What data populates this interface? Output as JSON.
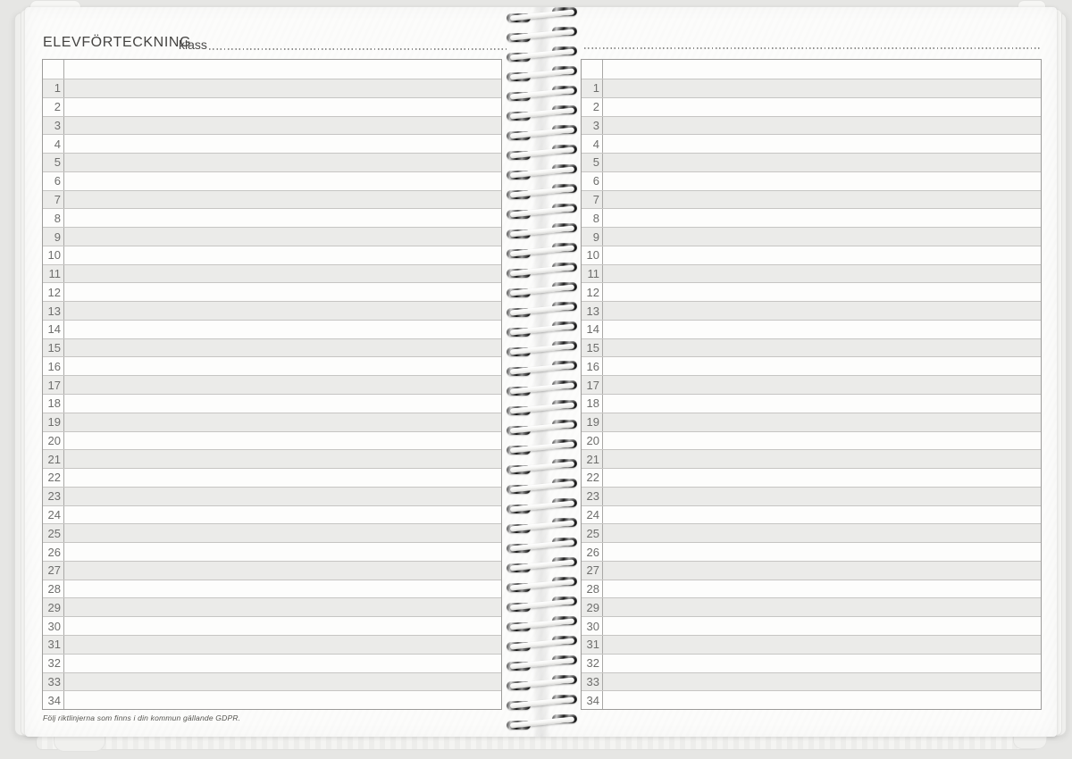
{
  "header": {
    "title": "ELEVFÖRTECKNING",
    "class_label": "klass"
  },
  "roster": {
    "row_count": 34,
    "row_numbers": [
      "1",
      "2",
      "3",
      "4",
      "5",
      "6",
      "7",
      "8",
      "9",
      "10",
      "11",
      "12",
      "13",
      "14",
      "15",
      "16",
      "17",
      "18",
      "19",
      "20",
      "21",
      "22",
      "23",
      "24",
      "25",
      "26",
      "27",
      "28",
      "29",
      "30",
      "31",
      "32",
      "33",
      "34"
    ]
  },
  "footer": {
    "gdpr_note": "Följ riktlinjerna som finns i din kommun gällande GDPR."
  },
  "spiral": {
    "coil_count": 37
  },
  "colors": {
    "page": "#fcfcfb",
    "background": "#e6e6e4",
    "row_shaded": "#ebebe9",
    "row_line": "#c6c5c3",
    "table_border": "#9c9b99",
    "title_ink": "#454442",
    "number_ink": "#6e6e6c",
    "dot": "#8f8f8d",
    "footnote_ink": "#55544f"
  }
}
